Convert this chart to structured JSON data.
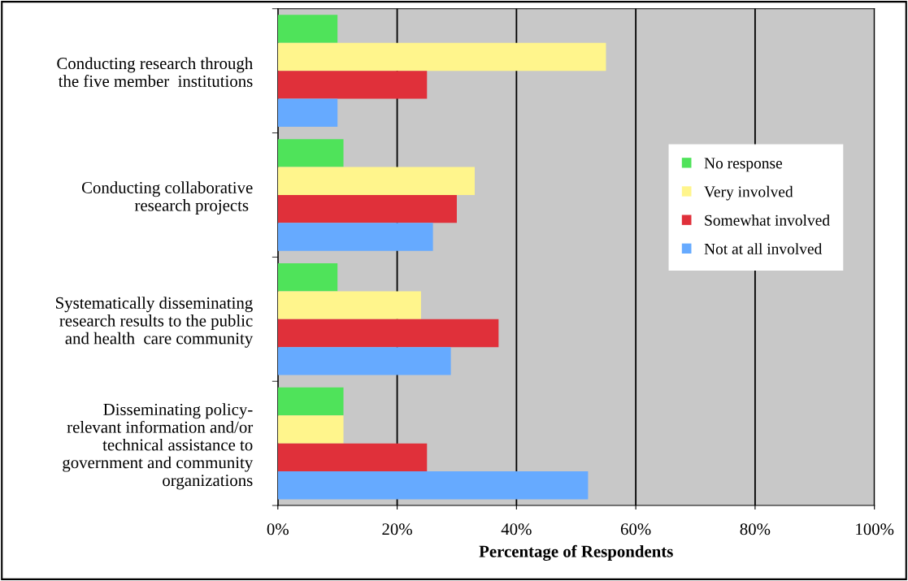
{
  "chart_data": {
    "type": "bar",
    "orientation": "horizontal",
    "xlabel": "Percentage of Respondents",
    "categories": [
      "Conducting research through\nthe five member  institutions",
      "Conducting collaborative\nresearch projects ",
      "Systematically disseminating\nresearch results to the public\nand health  care community",
      "Disseminating policy-\nrelevant information and/or\ntechnical assistance to\ngovernment and community\norganizations"
    ],
    "series": [
      {
        "name": "No response",
        "color": "#4fe35a",
        "values": [
          10,
          11,
          10,
          11
        ]
      },
      {
        "name": "Very involved",
        "color": "#fff58c",
        "values": [
          55,
          33,
          24,
          11
        ]
      },
      {
        "name": "Somewhat involved",
        "color": "#e0303a",
        "values": [
          25,
          30,
          37,
          25
        ]
      },
      {
        "name": "Not at all involved",
        "color": "#66aaff",
        "values": [
          10,
          26,
          29,
          52
        ]
      }
    ],
    "xlim": [
      0,
      100
    ],
    "xticks": [
      {
        "value": 0,
        "label": "0%"
      },
      {
        "value": 20,
        "label": "20%"
      },
      {
        "value": 40,
        "label": "40%"
      },
      {
        "value": 60,
        "label": "60%"
      },
      {
        "value": 80,
        "label": "80%"
      },
      {
        "value": 100,
        "label": "100%"
      }
    ],
    "grid": "x",
    "legend": "right"
  }
}
